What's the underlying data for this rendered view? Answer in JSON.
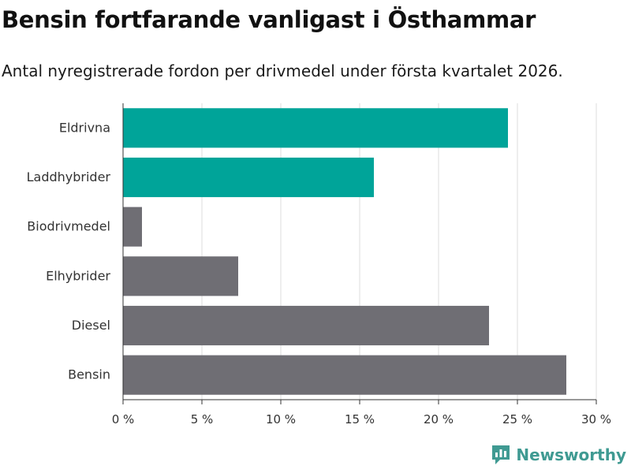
{
  "header": {
    "title": "Bensin fortfarande vanligast i Östhammar",
    "subtitle": "Antal nyregistrerade fordon per drivmedel under första kvartalet 2026."
  },
  "chart_data": {
    "type": "bar",
    "orientation": "horizontal",
    "title": "Bensin fortfarande vanligast i Östhammar",
    "subtitle": "Antal nyregistrerade fordon per drivmedel under första kvartalet 2026.",
    "xlabel": "",
    "ylabel": "",
    "xlim": [
      0,
      30
    ],
    "xticks": [
      0,
      5,
      10,
      15,
      20,
      25,
      30
    ],
    "xtick_labels": [
      "0 %",
      "5 %",
      "10 %",
      "15 %",
      "20 %",
      "25 %",
      "30 %"
    ],
    "grid": true,
    "categories": [
      "Eldrivna",
      "Laddhybrider",
      "Biodrivmedel",
      "Elhybrider",
      "Diesel",
      "Bensin"
    ],
    "values": [
      24.4,
      15.9,
      1.2,
      7.3,
      23.2,
      28.1
    ],
    "colors": [
      "#00a499",
      "#00a499",
      "#6f6e74",
      "#6f6e74",
      "#6f6e74",
      "#6f6e74"
    ]
  },
  "footer": {
    "brand_name": "Newsworthy",
    "brand_color": "#3f9a92",
    "brand_icon": "newsworthy-logo-icon"
  }
}
